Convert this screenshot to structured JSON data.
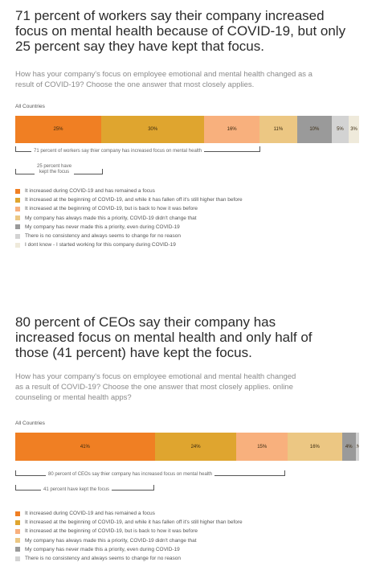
{
  "section1": {
    "title_lines": [
      "71 percent of workers say their company increased",
      "focus on mental health because of COVID-19, but only",
      "25 percent say they have kept that focus."
    ],
    "question_lines": [
      "How has your company's focus on employee emotional and mental health changed as a",
      "result of COVID-19? Choose the one answer that most closely applies."
    ],
    "group_label": "All Countries",
    "bracket_increased": "71 percent of workers say thier company has increased focus on mental health",
    "bracket_kept_lines": [
      "25 percent have",
      "kept the focus"
    ]
  },
  "section2": {
    "title_lines": [
      "80 percent of CEOs say their company has",
      "increased focus on mental health and only half of",
      "those (41 percent) have kept the focus."
    ],
    "question_lines": [
      "How has your company's focus on employee emotional and mental health changed",
      "as a result of COVID-19? Choose the one answer that most closely applies. online",
      "counseling or mental health apps?"
    ],
    "group_label": "All Countries",
    "bracket_increased": "80 percent of CEOs say thier company has increased focus on mental health",
    "bracket_kept": "41 percent have kept the focus"
  },
  "colors": [
    "#f07f23",
    "#dfa52f",
    "#f8b07d",
    "#ecc783",
    "#9a9a9a",
    "#d3d3d3",
    "#efeadb"
  ],
  "chart_data": [
    {
      "type": "bar",
      "orientation": "horizontal-stacked",
      "group": "All Countries",
      "series": [
        {
          "name": "It increased during COVID-19 and has remained a focus",
          "value": 25,
          "label": "25%"
        },
        {
          "name": "It increased at the beginning of COVID-19, and while it has fallen off it's still higher than before",
          "value": 30,
          "label": "30%"
        },
        {
          "name": "It increased at the beginning of COVID-19, but is back to how it was before",
          "value": 16,
          "label": "16%"
        },
        {
          "name": "My company has always made this a priority, COVID-19 didn't change that",
          "value": 11,
          "label": "11%"
        },
        {
          "name": "My company has never made this a priority, even during COVID-19",
          "value": 10,
          "label": "10%"
        },
        {
          "name": "There is no consistency and always seems to change for no reason",
          "value": 5,
          "label": "5%"
        },
        {
          "name": "I dont know - I started working for this company during COVID-19",
          "value": 3,
          "label": "3%"
        }
      ]
    },
    {
      "type": "bar",
      "orientation": "horizontal-stacked",
      "group": "All Countries",
      "series": [
        {
          "name": "It increased during COVID-19 and has remained a focus",
          "value": 41,
          "label": "41%"
        },
        {
          "name": "It increased at the beginning of COVID-19, and while it has fallen off it's still higher than before",
          "value": 24,
          "label": "24%"
        },
        {
          "name": "It increased at the beginning of COVID-19, but is back to how it was before",
          "value": 15,
          "label": "15%"
        },
        {
          "name": "My company has always made this a priority, COVID-19 didn't change that",
          "value": 16,
          "label": "16%"
        },
        {
          "name": "My company has never made this a priority, even during COVID-19",
          "value": 4,
          "label": "4%"
        },
        {
          "name": "There is no consistency and always seems to change for no reason",
          "value": 1,
          "label": "1%"
        }
      ]
    }
  ]
}
